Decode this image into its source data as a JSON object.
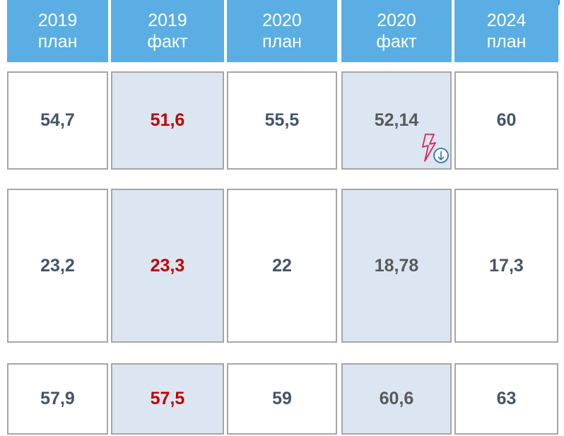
{
  "header": [
    {
      "year": "2019",
      "kind": "план"
    },
    {
      "year": "2019",
      "kind": "факт"
    },
    {
      "year": "2020",
      "kind": "план"
    },
    {
      "year": "2020",
      "kind": "факт"
    },
    {
      "year": "2024",
      "kind": "план"
    }
  ],
  "rows": [
    [
      "54,7",
      "51,6",
      "55,5",
      "52,14",
      "60"
    ],
    [
      "23,2",
      "23,3",
      "22",
      "18,78",
      "17,3"
    ],
    [
      "57,9",
      "57,5",
      "59",
      "60,6",
      "63"
    ]
  ]
}
